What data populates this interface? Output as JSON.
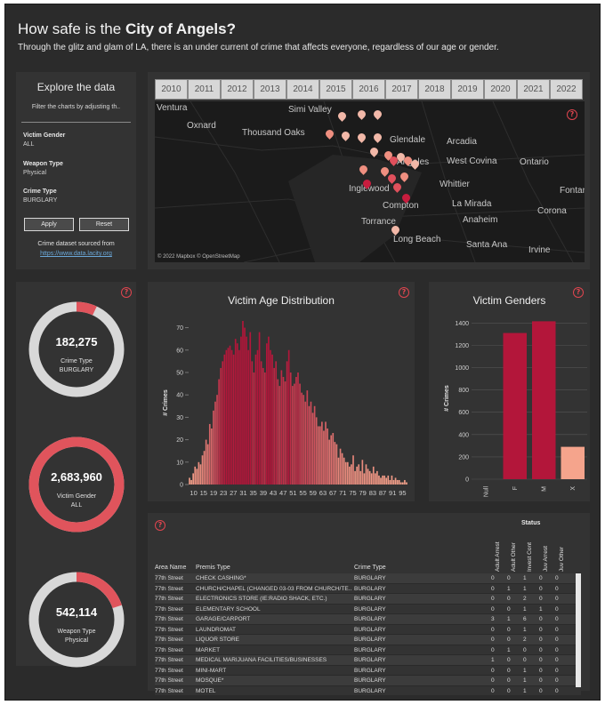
{
  "header": {
    "title_prefix": "How safe is the ",
    "title_bold": "City of Angels?",
    "subtitle": "Through the glitz and glam of LA, there is an under current of crime that affects everyone, regardless of our age or gender."
  },
  "filters": {
    "heading": "Explore the data",
    "hint": "Filter the charts by adjusting th..",
    "victim_gender_label": "Victim Gender",
    "victim_gender_value": "ALL",
    "weapon_type_label": "Weapon Type",
    "weapon_type_value": "Physical",
    "crime_type_label": "Crime Type",
    "crime_type_value": "BURGLARY",
    "apply_label": "Apply",
    "reset_label": "Reset",
    "source_text": "Crime dataset sourced from",
    "source_link": "https://www.data.lacity.org"
  },
  "years": [
    "2010",
    "2011",
    "2012",
    "2013",
    "2014",
    "2015",
    "2016",
    "2017",
    "2018",
    "2019",
    "2020",
    "2021",
    "2022"
  ],
  "map": {
    "cities": [
      "Ventura",
      "Simi Valley",
      "Oxnard",
      "Thousand Oaks",
      "Glendale",
      "Arcadia",
      "West Covina",
      "Ontario",
      "Angeles",
      "Whittier",
      "Fontana",
      "Inglewood",
      "La Mirada",
      "Compton",
      "Torrance",
      "Anaheim",
      "Corona",
      "Long Beach",
      "Santa Ana",
      "Irvine"
    ],
    "credit": "© 2022 Mapbox © OpenStreetMap",
    "pin_colors": [
      "#f2b8a8",
      "#ef8f80",
      "#e0505c",
      "#c81d3e"
    ]
  },
  "kpis": [
    {
      "value": "182,275",
      "label1": "Crime Type",
      "label2": "BURGLARY",
      "fraction": 0.07
    },
    {
      "value": "2,683,960",
      "label1": "Victim Gender",
      "label2": "ALL",
      "fraction": 1.0
    },
    {
      "value": "542,114",
      "label1": "Weapon Type",
      "label2": "Physical",
      "fraction": 0.2
    }
  ],
  "colors": {
    "accent": "#e0545c",
    "ring_track": "#d8d8d8",
    "bar_dark": "#b3163a",
    "bar_light": "#f5a48c"
  },
  "age_chart": {
    "title": "Victim Age Distribution",
    "ylabel": "# Crimes"
  },
  "gender_chart": {
    "title": "Victim Genders",
    "ylabel": "# Crimes"
  },
  "chart_data": [
    {
      "type": "bar",
      "title": "Victim Age Distribution",
      "ylabel": "# Crimes",
      "ylim": [
        0,
        73
      ],
      "yticks": [
        0,
        10,
        20,
        30,
        40,
        50,
        60,
        70
      ],
      "xticks": [
        "10",
        "15",
        "19",
        "23",
        "27",
        "31",
        "35",
        "39",
        "43",
        "47",
        "51",
        "55",
        "59",
        "63",
        "67",
        "71",
        "75",
        "79",
        "83",
        "87",
        "91",
        "95"
      ],
      "x_start": 10,
      "values": [
        3,
        2,
        5,
        8,
        7,
        10,
        9,
        13,
        15,
        20,
        18,
        27,
        25,
        33,
        37,
        40,
        47,
        52,
        55,
        58,
        60,
        61,
        62,
        60,
        58,
        65,
        63,
        60,
        66,
        73,
        70,
        66,
        60,
        68,
        55,
        50,
        58,
        60,
        68,
        55,
        52,
        50,
        63,
        66,
        60,
        58,
        52,
        55,
        47,
        44,
        51,
        48,
        46,
        55,
        60,
        50,
        44,
        45,
        48,
        50,
        45,
        41,
        40,
        37,
        42,
        35,
        37,
        32,
        35,
        30,
        26,
        26,
        28,
        24,
        28,
        25,
        20,
        22,
        23,
        19,
        18,
        12,
        16,
        14,
        12,
        10,
        10,
        8,
        9,
        13,
        6,
        8,
        9,
        6,
        11,
        5,
        9,
        7,
        6,
        5,
        8,
        5,
        6,
        4,
        3,
        4,
        4,
        3,
        4,
        2,
        4,
        2,
        3,
        2,
        2,
        1,
        1,
        2,
        1
      ]
    },
    {
      "type": "bar",
      "title": "Victim Genders",
      "ylabel": "# Crimes",
      "categories": [
        "Null",
        "F",
        "M",
        "X"
      ],
      "values": [
        0,
        1310,
        1415,
        290
      ],
      "ylim": [
        0,
        1450
      ],
      "yticks": [
        0,
        200,
        400,
        600,
        800,
        1000,
        1200,
        1400
      ]
    }
  ],
  "table": {
    "status_header": "Status",
    "columns": [
      "Area Name",
      "Premis Type",
      "Crime Type"
    ],
    "status_columns": [
      "Adult Arrest",
      "Adult Other",
      "Invest Cont",
      "Juv Arrest",
      "Juv Other"
    ],
    "rows": [
      {
        "area": "77th Street",
        "premis": "CHECK CASHING*",
        "crime": "BURGLARY",
        "s": [
          "0",
          "0",
          "1",
          "0",
          "0"
        ]
      },
      {
        "area": "77th Street",
        "premis": "CHURCH/CHAPEL (CHANGED 03-03 FROM CHURCH/TE..",
        "crime": "BURGLARY",
        "s": [
          "0",
          "1",
          "1",
          "0",
          "0"
        ]
      },
      {
        "area": "77th Street",
        "premis": "ELECTRONICS STORE (IE:RADIO SHACK, ETC.)",
        "crime": "BURGLARY",
        "s": [
          "0",
          "0",
          "2",
          "0",
          "0"
        ]
      },
      {
        "area": "77th Street",
        "premis": "ELEMENTARY SCHOOL",
        "crime": "BURGLARY",
        "s": [
          "0",
          "0",
          "1",
          "1",
          "0"
        ]
      },
      {
        "area": "77th Street",
        "premis": "GARAGE/CARPORT",
        "crime": "BURGLARY",
        "s": [
          "3",
          "1",
          "6",
          "0",
          "0"
        ]
      },
      {
        "area": "77th Street",
        "premis": "LAUNDROMAT",
        "crime": "BURGLARY",
        "s": [
          "0",
          "0",
          "1",
          "0",
          "0"
        ]
      },
      {
        "area": "77th Street",
        "premis": "LIQUOR STORE",
        "crime": "BURGLARY",
        "s": [
          "0",
          "0",
          "2",
          "0",
          "0"
        ]
      },
      {
        "area": "77th Street",
        "premis": "MARKET",
        "crime": "BURGLARY",
        "s": [
          "0",
          "1",
          "0",
          "0",
          "0"
        ]
      },
      {
        "area": "77th Street",
        "premis": "MEDICAL MARIJUANA FACILITIES/BUSINESSES",
        "crime": "BURGLARY",
        "s": [
          "1",
          "0",
          "0",
          "0",
          "0"
        ]
      },
      {
        "area": "77th Street",
        "premis": "MINI-MART",
        "crime": "BURGLARY",
        "s": [
          "0",
          "0",
          "1",
          "0",
          "0"
        ]
      },
      {
        "area": "77th Street",
        "premis": "MOSQUE*",
        "crime": "BURGLARY",
        "s": [
          "0",
          "0",
          "1",
          "0",
          "0"
        ]
      },
      {
        "area": "77th Street",
        "premis": "MOTEL",
        "crime": "BURGLARY",
        "s": [
          "0",
          "0",
          "1",
          "0",
          "0"
        ]
      }
    ]
  }
}
